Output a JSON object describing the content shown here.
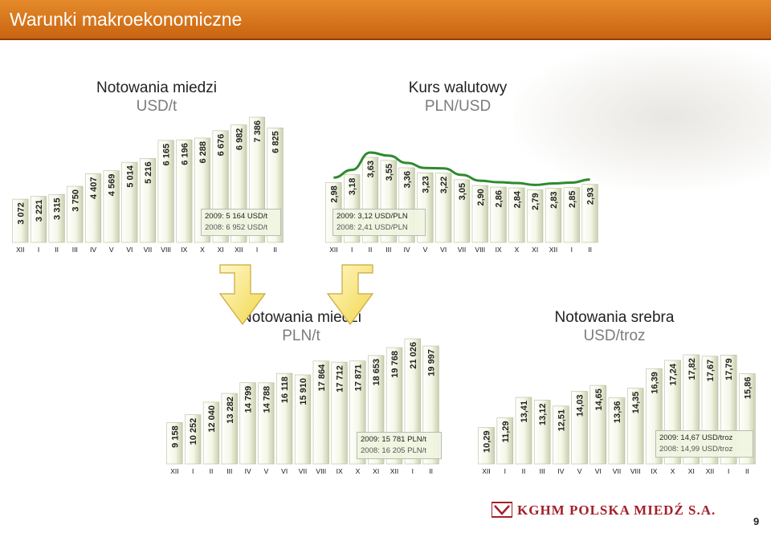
{
  "header": {
    "title": "Warunki makroekonomiczne"
  },
  "charts": {
    "copper_usd": {
      "title": "Notowania miedzi",
      "unit": "USD/t",
      "info": [
        "2009: 5 164 USD/t",
        "2008: 6 952 USD/t"
      ]
    },
    "fx": {
      "title": "Kurs walutowy",
      "unit": "PLN/USD",
      "info": [
        "2009: 3,12 USD/PLN",
        "2008: 2,41 USD/PLN"
      ]
    },
    "copper_pln": {
      "title": "Notowania miedzi",
      "unit": "PLN/t",
      "info": [
        "2009: 15 781 PLN/t",
        "2008: 16 205 PLN/t"
      ]
    },
    "silver": {
      "title": "Notowania srebra",
      "unit": "USD/troz",
      "info": [
        "2009: 14,67 USD/troz",
        "2008: 14,99 USD/troz"
      ]
    }
  },
  "chart_data": [
    {
      "type": "bar",
      "title": "Notowania miedzi USD/t",
      "categories": [
        "XII",
        "I",
        "II",
        "III",
        "IV",
        "V",
        "VI",
        "VII",
        "VIII",
        "IX",
        "X",
        "XI",
        "XII",
        "I",
        "II"
      ],
      "values": [
        3072,
        3221,
        3315,
        3750,
        4407,
        4569,
        5014,
        5216,
        6165,
        6196,
        6288,
        6676,
        6982,
        7386,
        6825
      ],
      "labels": [
        "3 072",
        "3 221",
        "3 315",
        "3 750",
        "4 407",
        "4 569",
        "5 014",
        "5 216",
        "6 165",
        "6 196",
        "6 288",
        "6 676",
        "6 982",
        "7 386",
        "6 825"
      ]
    },
    {
      "type": "bar",
      "title": "Kurs walutowy PLN/USD",
      "categories": [
        "XII",
        "I",
        "II",
        "III",
        "IV",
        "V",
        "VI",
        "VII",
        "VIII",
        "IX",
        "X",
        "XI",
        "XII",
        "I",
        "II"
      ],
      "values": [
        2.98,
        3.18,
        3.63,
        3.55,
        3.36,
        3.23,
        3.22,
        3.05,
        2.9,
        2.86,
        2.84,
        2.79,
        2.83,
        2.85,
        2.93
      ],
      "labels": [
        "2,98",
        "3,18",
        "3,63",
        "3,55",
        "3,36",
        "3,23",
        "3,22",
        "3,05",
        "2,90",
        "2,86",
        "2,84",
        "2,79",
        "2,83",
        "2,85",
        "2,93"
      ],
      "trendline": true
    },
    {
      "type": "bar",
      "title": "Notowania miedzi PLN/t",
      "categories": [
        "XII",
        "I",
        "II",
        "III",
        "IV",
        "V",
        "VI",
        "VII",
        "VIII",
        "IX",
        "X",
        "XI",
        "XII",
        "I",
        "II"
      ],
      "values": [
        9158,
        10252,
        12040,
        13282,
        14799,
        14788,
        16118,
        15910,
        17864,
        17712,
        17871,
        18653,
        19768,
        21026,
        19997
      ],
      "labels": [
        "9 158",
        "10 252",
        "12 040",
        "13 282",
        "14 799",
        "14 788",
        "16 118",
        "15 910",
        "17 864",
        "17 712",
        "17 871",
        "18 653",
        "19 768",
        "21 026",
        "19 997"
      ]
    },
    {
      "type": "bar",
      "title": "Notowania srebra USD/troz",
      "categories": [
        "XII",
        "I",
        "II",
        "III",
        "IV",
        "V",
        "VI",
        "VII",
        "VIII",
        "IX",
        "X",
        "XI",
        "XII",
        "I",
        "II"
      ],
      "values": [
        10.29,
        11.29,
        13.41,
        13.12,
        12.51,
        14.03,
        14.65,
        13.36,
        14.35,
        16.39,
        17.24,
        17.82,
        17.67,
        17.79,
        15.86
      ],
      "labels": [
        "10,29",
        "11,29",
        "13,41",
        "13,12",
        "12,51",
        "14,03",
        "14,65",
        "13,36",
        "14,35",
        "16,39",
        "17,24",
        "17,82",
        "17,67",
        "17,79",
        "15,86"
      ]
    }
  ],
  "footer": {
    "logo": "KGHM POLSKA MIEDŹ S.A.",
    "page": "9"
  }
}
